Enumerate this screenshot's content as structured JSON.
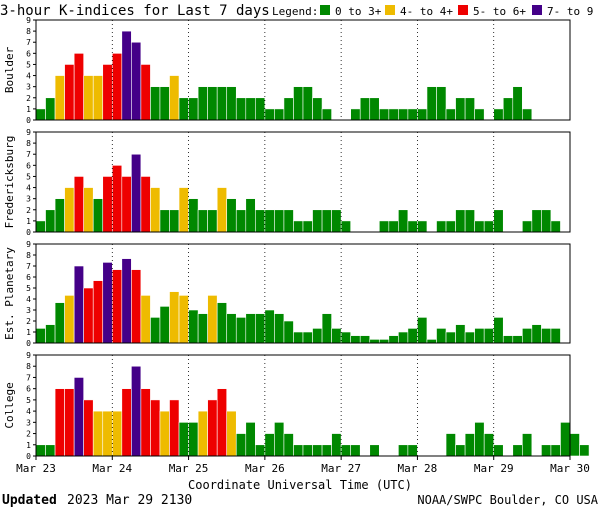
{
  "title": "3-hour K-indices for Last 7 days",
  "legend": {
    "label": "Legend:",
    "items": [
      {
        "label": "0 to 3+",
        "color": "#008800"
      },
      {
        "label": "4- to 4+",
        "color": "#eebb00"
      },
      {
        "label": "5- to 6+",
        "color": "#ee0000"
      },
      {
        "label": "7- to 9",
        "color": "#440088"
      }
    ]
  },
  "footer": {
    "updated_label": "Updated",
    "updated_value": "2023 Mar 29 2130",
    "source": "NOAA/SWPC Boulder, CO USA"
  },
  "chart_data": {
    "type": "bar",
    "xlabel": "Coordinate Universal Time (UTC)",
    "x_ticks": [
      "Mar 23",
      "Mar 24",
      "Mar 25",
      "Mar 26",
      "Mar 27",
      "Mar 28",
      "Mar 29",
      "Mar 30"
    ],
    "y_ticks": [
      "0",
      "1",
      "2",
      "3",
      "4",
      "5",
      "6",
      "7",
      "8",
      "9"
    ],
    "ylim": [
      0,
      9
    ],
    "bars_per_day": 8,
    "grid": "dotted vertical at day boundaries",
    "panels": [
      {
        "name": "Boulder",
        "values": [
          1,
          2,
          4,
          5,
          6,
          4,
          4,
          5,
          6,
          8,
          7,
          5,
          3,
          3,
          4,
          2,
          2,
          3,
          3,
          3,
          3,
          2,
          2,
          2,
          1,
          1,
          2,
          3,
          3,
          2,
          1,
          0,
          0,
          1,
          2,
          2,
          1,
          1,
          1,
          1,
          1,
          3,
          3,
          1,
          2,
          2,
          1,
          0,
          1,
          2,
          3,
          1,
          0
        ]
      },
      {
        "name": "Fredericksburg",
        "values": [
          1,
          2,
          3,
          4,
          5,
          4,
          3,
          5,
          6,
          5,
          7,
          5,
          4,
          2,
          2,
          4,
          3,
          2,
          2,
          4,
          3,
          2,
          3,
          2,
          2,
          2,
          2,
          1,
          1,
          2,
          2,
          2,
          1,
          0,
          0,
          0,
          1,
          1,
          2,
          1,
          1,
          0,
          1,
          1,
          2,
          2,
          1,
          1,
          2,
          0,
          0,
          1,
          2,
          2,
          1,
          0
        ]
      },
      {
        "name": "Est. Planetary",
        "values": [
          1.33,
          1.67,
          3.67,
          4.33,
          7,
          5,
          5.67,
          7.33,
          6.67,
          7.67,
          6.67,
          4.33,
          2.33,
          3.33,
          4.67,
          4.33,
          3,
          2.67,
          4.33,
          3.67,
          2.67,
          2.33,
          2.67,
          2.67,
          3,
          2.67,
          2,
          1,
          1,
          1.33,
          2.67,
          1.33,
          1,
          0.67,
          0.67,
          0.33,
          0.33,
          0.67,
          1,
          1.33,
          2.33,
          0.33,
          1.33,
          1,
          1.67,
          1,
          1.33,
          1.33,
          2.33,
          0.67,
          0.67,
          1.33,
          1.67,
          1.33,
          1.33
        ]
      },
      {
        "name": "College",
        "values": [
          1,
          1,
          6,
          6,
          7,
          5,
          4,
          4,
          4,
          6,
          8,
          6,
          5,
          4,
          5,
          3,
          3,
          4,
          5,
          6,
          4,
          2,
          3,
          1,
          2,
          3,
          2,
          1,
          1,
          1,
          1,
          2,
          1,
          1,
          0,
          1,
          0,
          0,
          1,
          1,
          0,
          0,
          0,
          2,
          1,
          2,
          3,
          2,
          1,
          0,
          1,
          2,
          0,
          1,
          1,
          3,
          2,
          1,
          0
        ]
      }
    ]
  }
}
